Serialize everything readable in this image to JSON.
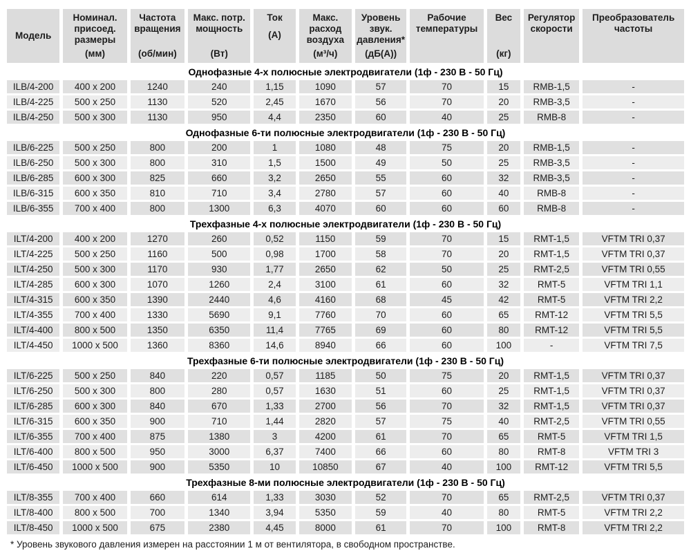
{
  "colors": {
    "header_cell_bg": "#dcdcdc",
    "row_dark_bg": "#e0e0e0",
    "row_light_bg": "#ededed",
    "section_text": "#000000",
    "text": "#1c1c1c"
  },
  "table": {
    "columns": [
      {
        "title": "Модель",
        "unit": "",
        "valign": "middle"
      },
      {
        "title": "Номинал. присоед. размеры",
        "unit": "(мм)",
        "unit_pos": "bottom"
      },
      {
        "title": "Частота вращения",
        "unit": "(об/мин)",
        "unit_pos": "bottom"
      },
      {
        "title": "Макс. потр. мощность",
        "unit": "(Вт)",
        "unit_pos": "bottom"
      },
      {
        "title": "Ток",
        "unit": "(А)",
        "unit_pos": "after"
      },
      {
        "title": "Макс. расход воздуха",
        "unit": "(м³/ч)",
        "unit_pos": "bottom"
      },
      {
        "title": "Уровень звук. давления*",
        "unit": "(дБ(А))",
        "unit_pos": "bottom"
      },
      {
        "title": "Рабочие температуры",
        "unit": ""
      },
      {
        "title": "Вес",
        "unit": "(кг)",
        "unit_pos": "bottom"
      },
      {
        "title": "Регулятор скорости",
        "unit": ""
      },
      {
        "title": "Преобразователь частоты",
        "unit": ""
      }
    ],
    "sections": [
      {
        "header": "Однофазные 4-х полюсные электродвигатели (1ф - 230 В - 50 Гц)",
        "rows": [
          [
            "ILB/4-200",
            "400 x 200",
            "1240",
            "240",
            "1,15",
            "1090",
            "57",
            "70",
            "15",
            "RMB-1,5",
            "-"
          ],
          [
            "ILB/4-225",
            "500 x 250",
            "1130",
            "520",
            "2,45",
            "1670",
            "56",
            "70",
            "20",
            "RMB-3,5",
            "-"
          ],
          [
            "ILB/4-250",
            "500 x 300",
            "1130",
            "950",
            "4,4",
            "2350",
            "60",
            "40",
            "25",
            "RMB-8",
            "-"
          ]
        ]
      },
      {
        "header": "Однофазные 6-ти полюсные электродвигатели (1ф - 230 В - 50 Гц)",
        "rows": [
          [
            "ILB/6-225",
            "500 x 250",
            "800",
            "200",
            "1",
            "1080",
            "48",
            "75",
            "20",
            "RMB-1,5",
            "-"
          ],
          [
            "ILB/6-250",
            "500 x 300",
            "800",
            "310",
            "1,5",
            "1500",
            "49",
            "50",
            "25",
            "RMB-3,5",
            "-"
          ],
          [
            "ILB/6-285",
            "600 x 300",
            "825",
            "660",
            "3,2",
            "2650",
            "55",
            "60",
            "32",
            "RMB-3,5",
            "-"
          ],
          [
            "ILB/6-315",
            "600 x 350",
            "810",
            "710",
            "3,4",
            "2780",
            "57",
            "60",
            "40",
            "RMB-8",
            "-"
          ],
          [
            "ILB/6-355",
            "700 x 400",
            "800",
            "1300",
            "6,3",
            "4070",
            "60",
            "60",
            "60",
            "RMB-8",
            "-"
          ]
        ]
      },
      {
        "header": "Трехфазные 4-х полюсные электродвигатели (1ф - 230 В - 50 Гц)",
        "rows": [
          [
            "ILT/4-200",
            "400 x 200",
            "1270",
            "260",
            "0,52",
            "1150",
            "59",
            "70",
            "15",
            "RMT-1,5",
            "VFTM TRI 0,37"
          ],
          [
            "ILT/4-225",
            "500 x 250",
            "1160",
            "500",
            "0,98",
            "1700",
            "58",
            "70",
            "20",
            "RMT-1,5",
            "VFTM TRI 0,37"
          ],
          [
            "ILT/4-250",
            "500 x 300",
            "1170",
            "930",
            "1,77",
            "2650",
            "62",
            "50",
            "25",
            "RMT-2,5",
            "VFTM TRI 0,55"
          ],
          [
            "ILT/4-285",
            "600 x 300",
            "1070",
            "1260",
            "2,4",
            "3100",
            "61",
            "60",
            "32",
            "RMT-5",
            "VFTM TRI 1,1"
          ],
          [
            "ILT/4-315",
            "600 x 350",
            "1390",
            "2440",
            "4,6",
            "4160",
            "68",
            "45",
            "42",
            "RMT-5",
            "VFTM TRI 2,2"
          ],
          [
            "ILT/4-355",
            "700 x 400",
            "1330",
            "5690",
            "9,1",
            "7760",
            "70",
            "60",
            "65",
            "RMT-12",
            "VFTM TRI 5,5"
          ],
          [
            "ILT/4-400",
            "800 x 500",
            "1350",
            "6350",
            "11,4",
            "7765",
            "69",
            "60",
            "80",
            "RMT-12",
            "VFTM TRI 5,5"
          ],
          [
            "ILT/4-450",
            "1000 x 500",
            "1360",
            "8360",
            "14,6",
            "8940",
            "66",
            "60",
            "100",
            "-",
            "VFTM TRI 7,5"
          ]
        ]
      },
      {
        "header": "Трехфазные 6-ти полюсные электродвигатели (1ф - 230 В - 50 Гц)",
        "rows": [
          [
            "ILT/6-225",
            "500 x 250",
            "840",
            "220",
            "0,57",
            "1185",
            "50",
            "75",
            "20",
            "RMT-1,5",
            "VFTM TRI 0,37"
          ],
          [
            "ILT/6-250",
            "500 x 300",
            "800",
            "280",
            "0,57",
            "1630",
            "51",
            "60",
            "25",
            "RMT-1,5",
            "VFTM TRI 0,37"
          ],
          [
            "ILT/6-285",
            "600 x 300",
            "840",
            "670",
            "1,33",
            "2700",
            "56",
            "70",
            "32",
            "RMT-1,5",
            "VFTM TRI 0,37"
          ],
          [
            "ILT/6-315",
            "600 x 350",
            "900",
            "710",
            "1,44",
            "2820",
            "57",
            "75",
            "40",
            "RMT-2,5",
            "VFTM TRI 0,55"
          ],
          [
            "ILT/6-355",
            "700 x 400",
            "875",
            "1380",
            "3",
            "4200",
            "61",
            "70",
            "65",
            "RMT-5",
            "VFTM TRI 1,5"
          ],
          [
            "ILT/6-400",
            "800 x 500",
            "950",
            "3000",
            "6,37",
            "7400",
            "66",
            "60",
            "80",
            "RMT-8",
            "VFTM TRI 3"
          ],
          [
            "ILT/6-450",
            "1000 x 500",
            "900",
            "5350",
            "10",
            "10850",
            "67",
            "40",
            "100",
            "RMT-12",
            "VFTM TRI 5,5"
          ]
        ]
      },
      {
        "header": "Трехфазные 8-ми полюсные электродвигатели (1ф - 230 В - 50 Гц)",
        "rows": [
          [
            "ILT/8-355",
            "700 x 400",
            "660",
            "614",
            "1,33",
            "3030",
            "52",
            "70",
            "65",
            "RMT-2,5",
            "VFTM TRI 0,37"
          ],
          [
            "ILT/8-400",
            "800 x 500",
            "700",
            "1340",
            "3,94",
            "5350",
            "59",
            "40",
            "80",
            "RMT-5",
            "VFTM TRI 2,2"
          ],
          [
            "ILT/8-450",
            "1000 x 500",
            "675",
            "2380",
            "4,45",
            "8000",
            "61",
            "70",
            "100",
            "RMT-8",
            "VFTM TRI 2,2"
          ]
        ]
      }
    ],
    "footnote": "* Уровень звукового давления измерен на расстоянии 1 м от вентилятора, в свободном пространстве."
  }
}
